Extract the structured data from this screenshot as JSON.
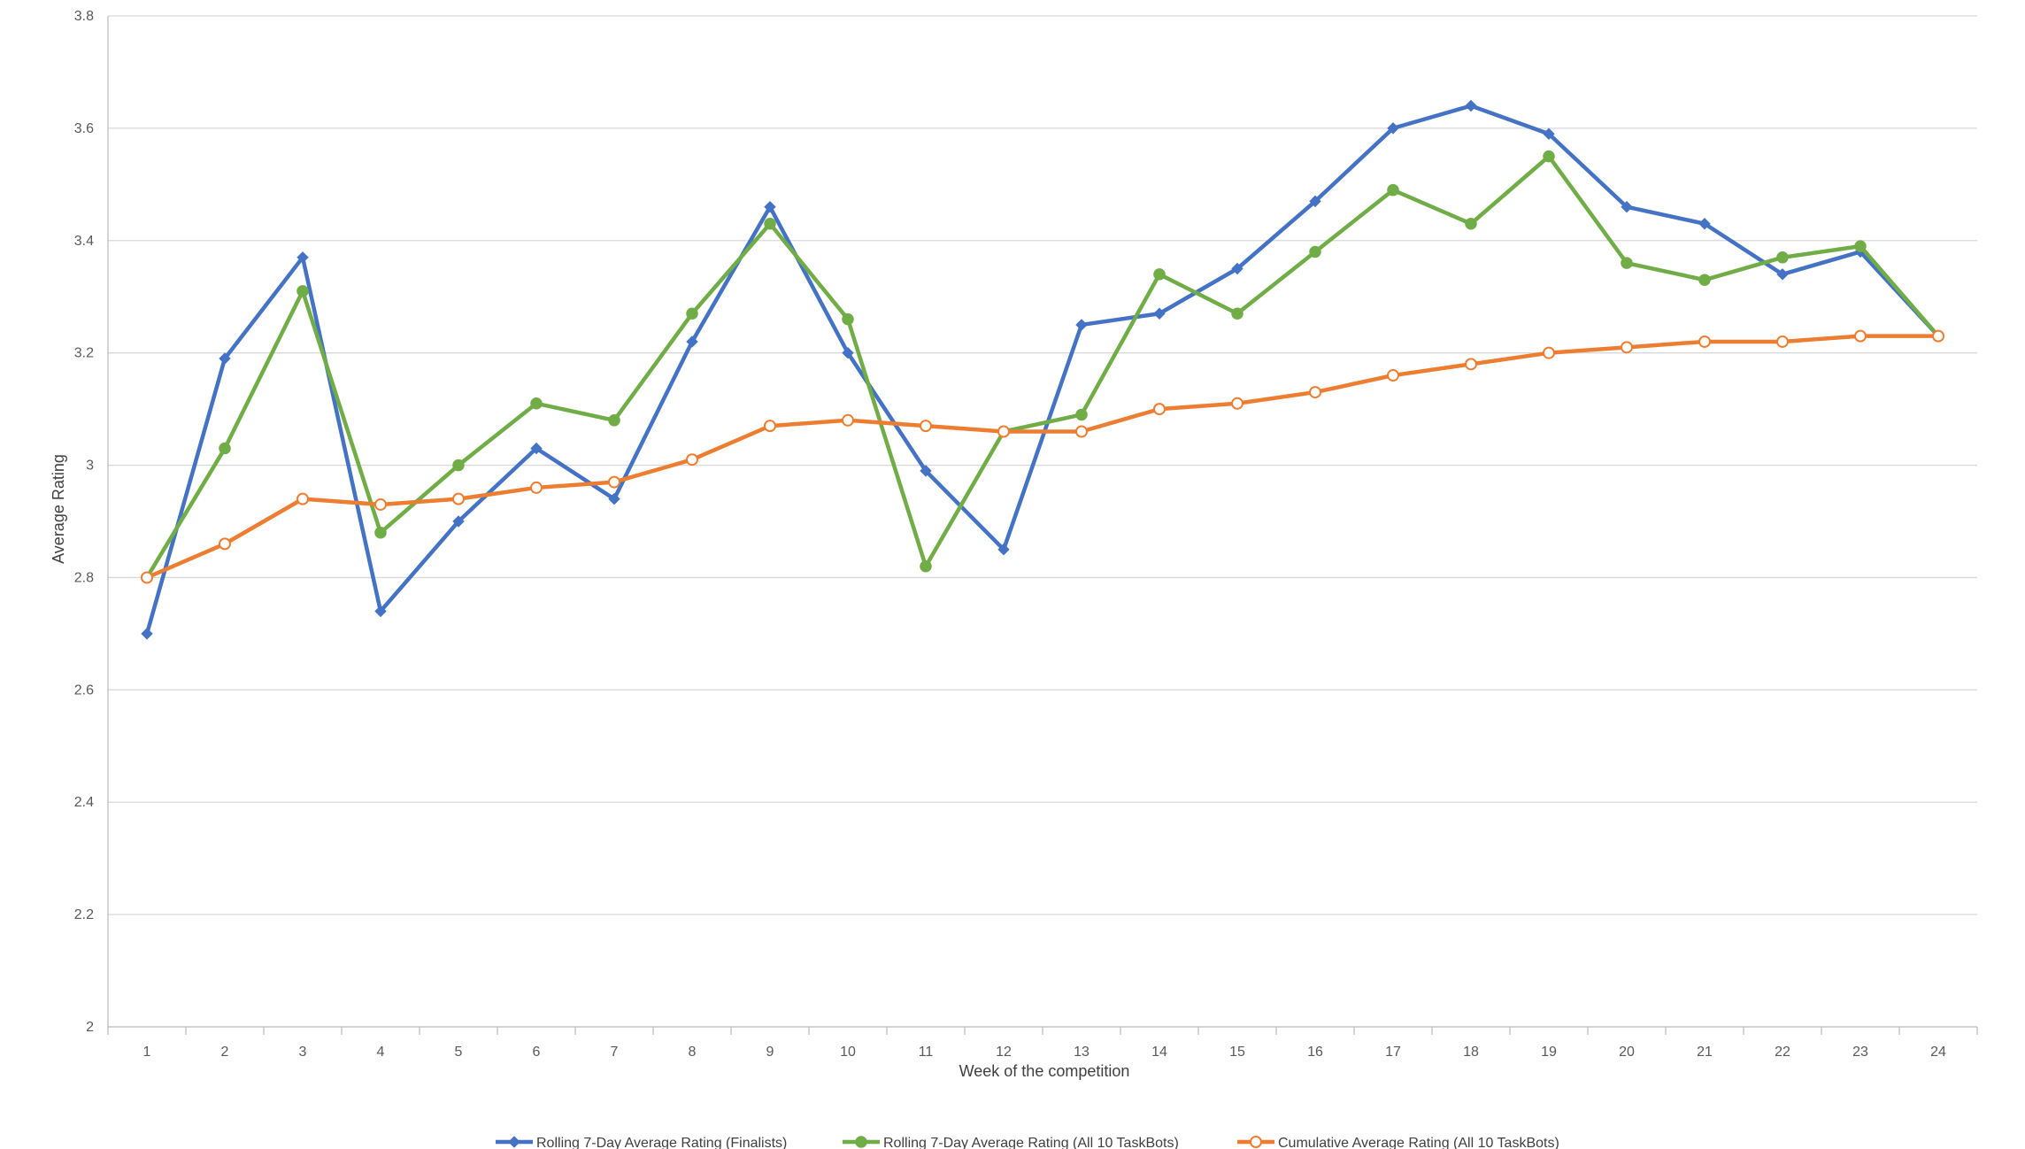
{
  "chart_data": {
    "type": "line",
    "title": "",
    "xlabel": "Week of the competition",
    "ylabel": "Average Rating",
    "x": [
      1,
      2,
      3,
      4,
      5,
      6,
      7,
      8,
      9,
      10,
      11,
      12,
      13,
      14,
      15,
      16,
      17,
      18,
      19,
      20,
      21,
      22,
      23,
      24
    ],
    "ylim": [
      2,
      3.8
    ],
    "yticks": [
      2,
      2.2,
      2.4,
      2.6,
      2.8,
      3,
      3.2,
      3.4,
      3.6,
      3.8
    ],
    "ytick_labels": [
      "2",
      "2.2",
      "2.4",
      "2.6",
      "2.8",
      "3",
      "3.2",
      "3.4",
      "3.6",
      "3.8"
    ],
    "grid": "horizontal",
    "legend_position": "bottom",
    "series": [
      {
        "name": "Rolling 7-Day Average Rating (Finalists)",
        "color": "#4472C4",
        "marker": "diamond",
        "values": [
          2.7,
          3.19,
          3.37,
          2.74,
          2.9,
          3.03,
          2.94,
          3.22,
          3.46,
          3.2,
          2.99,
          2.85,
          3.25,
          3.27,
          3.35,
          3.47,
          3.6,
          3.64,
          3.59,
          3.46,
          3.43,
          3.34,
          3.38,
          3.23
        ]
      },
      {
        "name": "Rolling 7-Day Average Rating (All 10 TaskBots)",
        "color": "#70AD47",
        "marker": "circle-filled",
        "values": [
          2.8,
          3.03,
          3.31,
          2.88,
          3.0,
          3.11,
          3.08,
          3.27,
          3.43,
          3.26,
          2.82,
          3.06,
          3.09,
          3.34,
          3.27,
          3.38,
          3.49,
          3.43,
          3.55,
          3.36,
          3.33,
          3.37,
          3.39,
          3.23
        ]
      },
      {
        "name": "Cumulative Average Rating (All 10 TaskBots)",
        "color": "#ED7D31",
        "marker": "circle-open",
        "values": [
          2.8,
          2.86,
          2.94,
          2.93,
          2.94,
          2.96,
          2.97,
          3.01,
          3.07,
          3.08,
          3.07,
          3.06,
          3.06,
          3.1,
          3.11,
          3.13,
          3.16,
          3.18,
          3.2,
          3.21,
          3.22,
          3.22,
          3.23,
          3.23
        ]
      }
    ]
  }
}
